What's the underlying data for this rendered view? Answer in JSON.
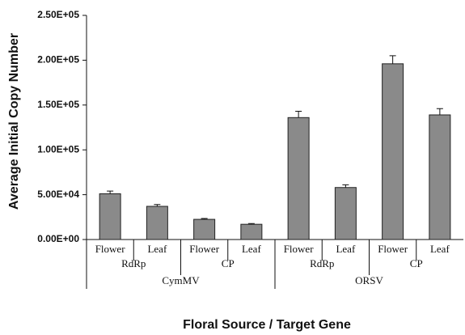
{
  "chart_data": {
    "type": "bar",
    "y_label": "Average Initial Copy Number",
    "x_label": "Floral Source / Target Gene",
    "categories": [
      "Flower",
      "Leaf",
      "Flower",
      "Leaf",
      "Flower",
      "Leaf",
      "Flower",
      "Leaf"
    ],
    "genes": [
      "RdRp",
      "CP",
      "RdRp",
      "CP"
    ],
    "viruses": [
      "CymMV",
      "ORSV"
    ],
    "values": [
      51000,
      37000,
      22500,
      17000,
      136000,
      58000,
      196000,
      139000
    ],
    "errors": [
      3000,
      2000,
      1000,
      800,
      7000,
      3000,
      9000,
      7000
    ],
    "color": "#8a8a8a",
    "ylim": [
      0,
      250000
    ],
    "yticks": [
      {
        "value": 0,
        "label": "0.00E+00"
      },
      {
        "value": 50000,
        "label": "5.00E+04"
      },
      {
        "value": 100000,
        "label": "1.00E+05"
      },
      {
        "value": 150000,
        "label": "1.50E+05"
      },
      {
        "value": 200000,
        "label": "2.00E+05"
      },
      {
        "value": 250000,
        "label": "2.50E+05"
      }
    ]
  }
}
